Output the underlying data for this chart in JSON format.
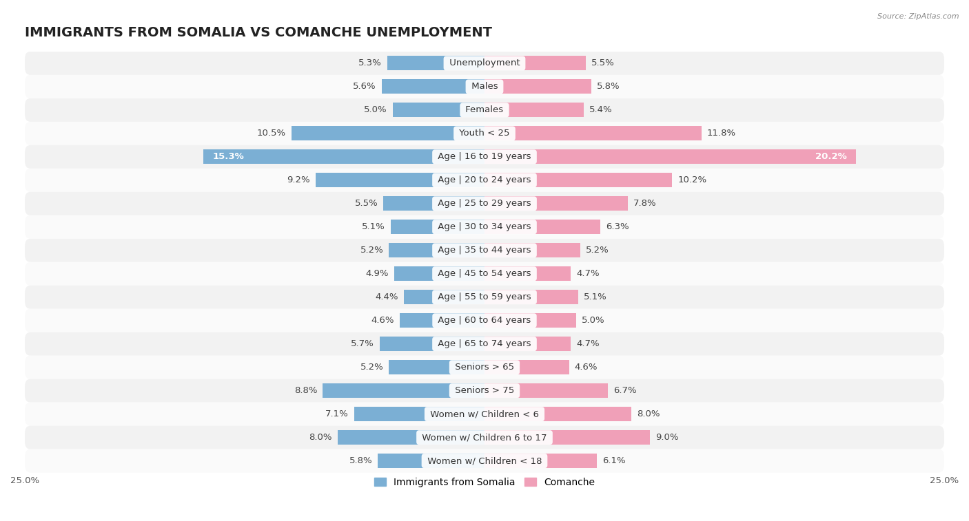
{
  "title": "IMMIGRANTS FROM SOMALIA VS COMANCHE UNEMPLOYMENT",
  "source": "Source: ZipAtlas.com",
  "categories": [
    "Unemployment",
    "Males",
    "Females",
    "Youth < 25",
    "Age | 16 to 19 years",
    "Age | 20 to 24 years",
    "Age | 25 to 29 years",
    "Age | 30 to 34 years",
    "Age | 35 to 44 years",
    "Age | 45 to 54 years",
    "Age | 55 to 59 years",
    "Age | 60 to 64 years",
    "Age | 65 to 74 years",
    "Seniors > 65",
    "Seniors > 75",
    "Women w/ Children < 6",
    "Women w/ Children 6 to 17",
    "Women w/ Children < 18"
  ],
  "somalia_values": [
    5.3,
    5.6,
    5.0,
    10.5,
    15.3,
    9.2,
    5.5,
    5.1,
    5.2,
    4.9,
    4.4,
    4.6,
    5.7,
    5.2,
    8.8,
    7.1,
    8.0,
    5.8
  ],
  "comanche_values": [
    5.5,
    5.8,
    5.4,
    11.8,
    20.2,
    10.2,
    7.8,
    6.3,
    5.2,
    4.7,
    5.1,
    5.0,
    4.7,
    4.6,
    6.7,
    8.0,
    9.0,
    6.1
  ],
  "somalia_color": "#7bafd4",
  "comanche_color": "#f0a0b8",
  "row_color_odd": "#f2f2f2",
  "row_color_even": "#fafafa",
  "xlim": 25.0,
  "bar_height": 0.62,
  "title_fontsize": 14,
  "label_fontsize": 9.5,
  "value_fontsize": 9.5,
  "white_text_threshold": 12.0
}
